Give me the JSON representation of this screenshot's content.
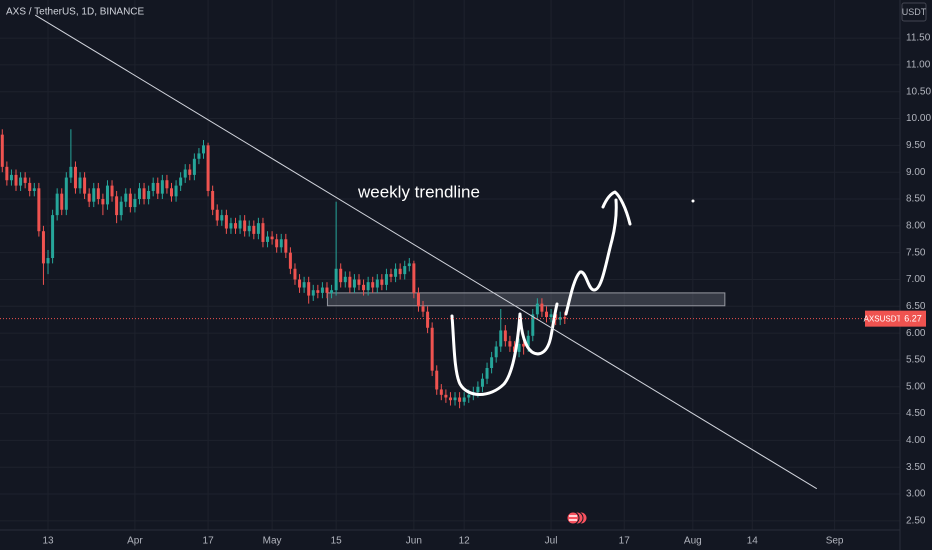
{
  "chart_data": {
    "type": "candlestick",
    "title": "AXS / TetherUS, 1D, BINANCE",
    "currency": "USDT",
    "symbol": "AXSUSDT",
    "up_color": "#26a69a",
    "down_color": "#ef5350",
    "grid": true,
    "x": [
      0,
      1,
      2,
      3,
      4,
      5,
      6,
      7,
      8,
      9,
      10,
      11,
      12,
      13,
      14,
      15,
      16,
      17,
      18,
      19,
      20,
      21,
      22,
      23,
      24,
      25,
      26,
      27,
      28,
      29,
      30,
      31,
      32,
      33,
      34,
      35,
      36,
      37,
      38,
      39,
      40,
      41,
      42,
      43,
      44,
      45,
      46,
      47,
      48,
      49,
      50,
      51,
      52,
      53,
      54,
      55,
      56,
      57,
      58,
      59,
      60,
      61,
      62,
      63,
      64,
      65,
      66,
      67,
      68,
      69,
      70,
      71,
      72,
      73,
      74,
      75,
      76,
      77,
      78,
      79,
      80,
      81,
      82,
      83,
      84,
      85,
      86,
      87,
      88,
      89,
      90,
      91,
      92,
      93,
      94,
      95,
      96,
      97,
      98,
      99,
      100,
      101,
      102,
      103,
      104,
      105,
      106,
      107,
      108,
      109,
      110,
      111,
      112,
      113,
      114,
      115,
      116,
      117,
      118,
      119,
      120,
      121,
      122,
      123
    ],
    "open": [
      9.7,
      9.1,
      8.85,
      8.95,
      8.75,
      8.9,
      8.8,
      8.65,
      8.7,
      7.9,
      7.3,
      7.4,
      8.2,
      8.6,
      8.3,
      8.9,
      9.1,
      8.7,
      8.9,
      8.6,
      8.45,
      8.7,
      8.5,
      8.4,
      8.75,
      8.55,
      8.2,
      8.45,
      8.6,
      8.35,
      8.5,
      8.7,
      8.5,
      8.65,
      8.8,
      8.6,
      8.85,
      8.7,
      8.55,
      8.75,
      8.9,
      9.05,
      8.95,
      9.25,
      9.35,
      9.5,
      8.65,
      8.3,
      8.1,
      8.2,
      7.95,
      8.05,
      7.95,
      8.1,
      7.9,
      8.0,
      7.85,
      8.05,
      7.7,
      7.8,
      7.75,
      7.6,
      7.75,
      7.5,
      7.2,
      7.0,
      6.85,
      6.95,
      6.7,
      6.8,
      6.75,
      6.85,
      6.75,
      6.8,
      7.2,
      6.95,
      7.05,
      6.85,
      7.0,
      6.9,
      6.8,
      6.95,
      6.85,
      7.0,
      6.9,
      7.1,
      7.05,
      7.2,
      7.1,
      7.25,
      7.3,
      6.75,
      6.5,
      6.4,
      6.1,
      5.3,
      4.95,
      4.85,
      4.8,
      4.75,
      4.8,
      4.72,
      4.8,
      4.85,
      4.9,
      5.0,
      5.15,
      5.35,
      5.55,
      5.75,
      6.05,
      5.85,
      5.75,
      5.65,
      5.8,
      5.75,
      5.95,
      6.35,
      6.55,
      6.4,
      6.3,
      6.35,
      6.25,
      6.3
    ],
    "high": [
      9.8,
      9.2,
      9.05,
      9.05,
      9.0,
      9.0,
      8.9,
      8.8,
      8.8,
      8.0,
      7.55,
      8.3,
      8.7,
      8.7,
      9.0,
      9.8,
      9.2,
      9.0,
      9.0,
      8.7,
      8.8,
      8.8,
      8.6,
      8.85,
      8.85,
      8.65,
      8.55,
      8.7,
      8.7,
      8.6,
      8.8,
      8.8,
      8.75,
      8.9,
      8.9,
      8.95,
      8.95,
      8.8,
      8.85,
      9.0,
      9.15,
      9.15,
      9.35,
      9.45,
      9.6,
      9.55,
      8.75,
      8.4,
      8.3,
      8.3,
      8.15,
      8.15,
      8.2,
      8.2,
      8.1,
      8.1,
      8.15,
      8.15,
      7.9,
      7.9,
      7.85,
      7.85,
      7.85,
      7.6,
      7.3,
      7.1,
      7.05,
      7.05,
      6.9,
      6.9,
      6.95,
      6.95,
      6.9,
      8.45,
      7.3,
      7.15,
      7.15,
      7.1,
      7.1,
      7.0,
      7.05,
      7.05,
      7.1,
      7.1,
      7.2,
      7.2,
      7.3,
      7.3,
      7.35,
      7.4,
      7.35,
      6.85,
      6.6,
      6.5,
      6.2,
      5.4,
      5.05,
      4.95,
      4.9,
      4.9,
      4.9,
      4.9,
      4.95,
      5.0,
      5.1,
      5.25,
      5.45,
      5.65,
      5.85,
      6.45,
      6.15,
      5.95,
      5.85,
      5.9,
      5.9,
      6.05,
      6.45,
      6.65,
      6.65,
      6.5,
      6.45,
      6.45,
      6.4,
      6.4
    ],
    "low": [
      9.0,
      8.75,
      8.75,
      8.65,
      8.65,
      8.7,
      8.55,
      8.55,
      7.8,
      6.9,
      7.1,
      7.3,
      8.1,
      8.2,
      8.2,
      8.8,
      8.6,
      8.6,
      8.5,
      8.35,
      8.35,
      8.4,
      8.2,
      8.3,
      8.45,
      8.05,
      8.1,
      8.35,
      8.25,
      8.25,
      8.4,
      8.4,
      8.4,
      8.55,
      8.5,
      8.5,
      8.6,
      8.45,
      8.45,
      8.65,
      8.8,
      8.85,
      8.85,
      9.15,
      9.25,
      8.55,
      8.2,
      8.0,
      8.0,
      7.85,
      7.85,
      7.85,
      7.85,
      7.8,
      7.8,
      7.75,
      7.75,
      7.6,
      7.6,
      7.65,
      7.5,
      7.5,
      7.4,
      7.1,
      6.9,
      6.75,
      6.75,
      6.55,
      6.6,
      6.65,
      6.65,
      6.65,
      6.65,
      6.7,
      6.85,
      6.85,
      6.75,
      6.75,
      6.8,
      6.7,
      6.7,
      6.75,
      6.75,
      6.8,
      6.8,
      6.95,
      6.95,
      7.0,
      7.0,
      7.15,
      6.65,
      6.4,
      6.3,
      6.0,
      5.2,
      4.85,
      4.75,
      4.7,
      4.65,
      4.65,
      4.6,
      4.65,
      4.7,
      4.75,
      4.8,
      4.9,
      5.05,
      5.25,
      5.45,
      5.65,
      5.75,
      5.65,
      5.5,
      5.55,
      5.6,
      5.65,
      5.85,
      6.25,
      6.3,
      6.2,
      6.2,
      6.15,
      6.15,
      6.17
    ],
    "close": [
      9.1,
      8.85,
      8.95,
      8.75,
      8.9,
      8.8,
      8.65,
      8.7,
      7.9,
      7.3,
      7.4,
      8.2,
      8.6,
      8.3,
      8.9,
      9.1,
      8.7,
      8.9,
      8.6,
      8.45,
      8.7,
      8.5,
      8.4,
      8.75,
      8.55,
      8.2,
      8.45,
      8.6,
      8.35,
      8.5,
      8.7,
      8.5,
      8.65,
      8.8,
      8.6,
      8.85,
      8.7,
      8.55,
      8.75,
      8.9,
      9.05,
      8.95,
      9.25,
      9.35,
      9.5,
      8.65,
      8.3,
      8.1,
      8.2,
      7.95,
      8.05,
      7.95,
      8.1,
      7.9,
      8.0,
      7.85,
      8.05,
      7.7,
      7.8,
      7.75,
      7.6,
      7.75,
      7.5,
      7.2,
      7.0,
      6.85,
      6.95,
      6.7,
      6.8,
      6.75,
      6.85,
      6.75,
      6.8,
      7.2,
      6.95,
      7.05,
      6.85,
      7.0,
      6.9,
      6.8,
      6.95,
      6.85,
      7.0,
      6.9,
      7.1,
      7.05,
      7.2,
      7.1,
      7.25,
      7.3,
      6.75,
      6.5,
      6.4,
      6.1,
      5.3,
      4.95,
      4.85,
      4.8,
      4.75,
      4.8,
      4.72,
      4.8,
      4.85,
      4.9,
      5.0,
      5.15,
      5.35,
      5.55,
      5.75,
      6.05,
      5.85,
      5.75,
      5.65,
      5.8,
      5.75,
      5.95,
      6.35,
      6.55,
      6.4,
      6.3,
      6.35,
      6.25,
      6.3,
      6.27
    ],
    "xlim": [
      -0.5,
      196.3
    ],
    "xticks": [
      {
        "value": 10,
        "label": "13"
      },
      {
        "value": 29,
        "label": "Apr"
      },
      {
        "value": 45,
        "label": "17"
      },
      {
        "value": 59,
        "label": "May"
      },
      {
        "value": 73,
        "label": "15"
      },
      {
        "value": 90,
        "label": "Jun"
      },
      {
        "value": 101,
        "label": "12"
      },
      {
        "value": 120,
        "label": "Jul"
      },
      {
        "value": 136,
        "label": "17"
      },
      {
        "value": 151,
        "label": "Aug"
      },
      {
        "value": 164,
        "label": "14"
      },
      {
        "value": 182,
        "label": "Sep"
      }
    ],
    "ylim": [
      2.33,
      12.21
    ],
    "yticks": [
      {
        "value": 2.5,
        "label": "2.50"
      },
      {
        "value": 3,
        "label": "3.00"
      },
      {
        "value": 3.5,
        "label": "3.50"
      },
      {
        "value": 4,
        "label": "4.00"
      },
      {
        "value": 4.5,
        "label": "4.50"
      },
      {
        "value": 5,
        "label": "5.00"
      },
      {
        "value": 5.5,
        "label": "5.50"
      },
      {
        "value": 6,
        "label": "6.00"
      },
      {
        "value": 6.5,
        "label": "6.50"
      },
      {
        "value": 7,
        "label": "7.00"
      },
      {
        "value": 7.5,
        "label": "7.50"
      },
      {
        "value": 8,
        "label": "8.00"
      },
      {
        "value": 8.5,
        "label": "8.50"
      },
      {
        "value": 9,
        "label": "9.00"
      },
      {
        "value": 9.5,
        "label": "9.50"
      },
      {
        "value": 10,
        "label": "10.00"
      },
      {
        "value": 10.5,
        "label": "10.50"
      },
      {
        "value": 11,
        "label": "11.00"
      },
      {
        "value": 11.5,
        "label": "11.50"
      }
    ],
    "annotation_text": "weekly trendline",
    "trendline": {
      "x": [
        7.2,
        178.1
      ],
      "y": [
        11.93,
        3.1
      ]
    },
    "zone": {
      "x": [
        71.1,
        158.0
      ],
      "y": [
        6.51,
        6.75
      ]
    }
  }
}
